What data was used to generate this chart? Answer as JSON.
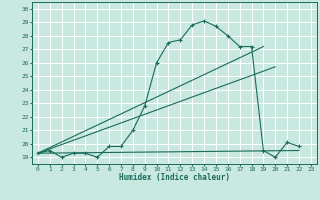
{
  "title": "",
  "xlabel": "Humidex (Indice chaleur)",
  "ylabel": "",
  "bg_color": "#c8e8e0",
  "grid_color": "#ffffff",
  "line_color": "#1a6b5a",
  "xlim": [
    -0.5,
    23.5
  ],
  "ylim": [
    18.5,
    30.5
  ],
  "xticks": [
    0,
    1,
    2,
    3,
    4,
    5,
    6,
    7,
    8,
    9,
    10,
    11,
    12,
    13,
    14,
    15,
    16,
    17,
    18,
    19,
    20,
    21,
    22,
    23
  ],
  "yticks": [
    19,
    20,
    21,
    22,
    23,
    24,
    25,
    26,
    27,
    28,
    29,
    30
  ],
  "series": [
    [
      0,
      19.3
    ],
    [
      1,
      19.5
    ],
    [
      2,
      19.0
    ],
    [
      3,
      19.3
    ],
    [
      4,
      19.3
    ],
    [
      5,
      19.0
    ],
    [
      6,
      19.8
    ],
    [
      7,
      19.8
    ],
    [
      8,
      21.0
    ],
    [
      9,
      22.8
    ],
    [
      10,
      26.0
    ],
    [
      11,
      27.5
    ],
    [
      12,
      27.7
    ],
    [
      13,
      28.8
    ],
    [
      14,
      29.1
    ],
    [
      15,
      28.7
    ],
    [
      16,
      28.0
    ],
    [
      17,
      27.2
    ],
    [
      18,
      27.2
    ],
    [
      19,
      19.5
    ],
    [
      20,
      19.0
    ],
    [
      21,
      20.1
    ],
    [
      22,
      19.8
    ]
  ],
  "line2": [
    [
      0,
      19.3
    ],
    [
      22,
      19.5
    ]
  ],
  "line3": [
    [
      0,
      19.3
    ],
    [
      20,
      25.7
    ]
  ],
  "line4": [
    [
      0,
      19.3
    ],
    [
      19,
      27.2
    ]
  ]
}
